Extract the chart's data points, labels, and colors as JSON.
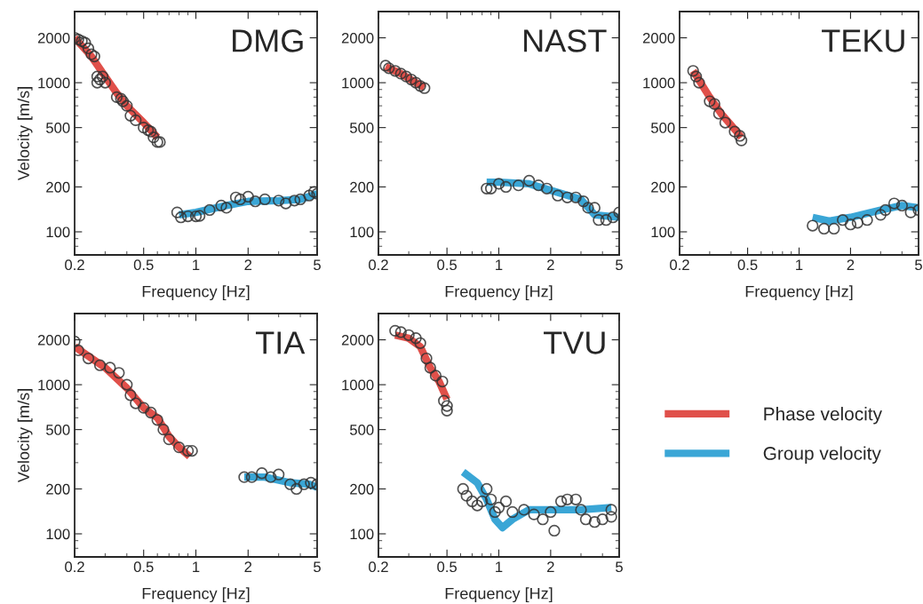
{
  "chart_data": [
    {
      "type": "line",
      "title": "DMG",
      "xlabel": "Frequency [Hz]",
      "ylabel": "Velocity [m/s]",
      "log": "xy",
      "xlim": [
        0.2,
        5
      ],
      "ylim": [
        70,
        3000
      ],
      "xticks": [
        0.2,
        0.5,
        1,
        2,
        5
      ],
      "yticks": [
        100,
        200,
        500,
        1000,
        2000
      ],
      "legend": false,
      "series": [
        {
          "type": "line",
          "color": "#e0504a",
          "marker": "none",
          "x": [
            0.2,
            0.25,
            0.3,
            0.35,
            0.4,
            0.5,
            0.6
          ],
          "values": [
            2000,
            1500,
            1100,
            850,
            700,
            540,
            430
          ]
        },
        {
          "type": "line",
          "color": "#3aa6d6",
          "marker": "none",
          "x": [
            0.8,
            1,
            1.5,
            2,
            3,
            4,
            5
          ],
          "values": [
            130,
            135,
            150,
            160,
            162,
            165,
            180
          ]
        },
        {
          "type": "scatter",
          "color": "#333333",
          "marker": "circle",
          "x": [
            0.2,
            0.21,
            0.22,
            0.23,
            0.24,
            0.25,
            0.26,
            0.27,
            0.27,
            0.28,
            0.29,
            0.3,
            0.35,
            0.37,
            0.38,
            0.4,
            0.42,
            0.45,
            0.5,
            0.53,
            0.55,
            0.57,
            0.6,
            0.62
          ],
          "values": [
            2000,
            1950,
            1900,
            1850,
            1700,
            1550,
            1500,
            1100,
            1000,
            1050,
            1100,
            1000,
            800,
            780,
            750,
            700,
            600,
            560,
            500,
            480,
            470,
            430,
            400,
            400
          ]
        },
        {
          "type": "scatter",
          "color": "#333333",
          "marker": "circle",
          "x": [
            0.78,
            0.82,
            0.9,
            1,
            1.05,
            1.2,
            1.4,
            1.5,
            1.7,
            1.8,
            2,
            2.2,
            2.5,
            3,
            3.3,
            3.7,
            4,
            4.5,
            4.8,
            5
          ],
          "values": [
            135,
            125,
            127,
            127,
            128,
            140,
            150,
            145,
            170,
            165,
            172,
            160,
            165,
            162,
            155,
            162,
            165,
            175,
            185,
            180
          ]
        }
      ]
    },
    {
      "type": "line",
      "title": "NAST",
      "xlabel": "Frequency [Hz]",
      "log": "xy",
      "xlim": [
        0.2,
        5
      ],
      "ylim": [
        70,
        3000
      ],
      "xticks": [
        0.2,
        0.5,
        1,
        2,
        5
      ],
      "yticks": [
        100,
        200,
        500,
        1000,
        2000
      ],
      "legend": false,
      "series": [
        {
          "type": "line",
          "color": "#e0504a",
          "marker": "none",
          "x": [
            0.22,
            0.27,
            0.33,
            0.37
          ],
          "values": [
            1280,
            1150,
            1000,
            930
          ]
        },
        {
          "type": "line",
          "color": "#3aa6d6",
          "marker": "none",
          "x": [
            0.85,
            1,
            1.5,
            2,
            3,
            3.6,
            5
          ],
          "values": [
            215,
            215,
            210,
            190,
            165,
            130,
            125
          ]
        },
        {
          "type": "scatter",
          "color": "#333333",
          "marker": "circle",
          "x": [
            0.22,
            0.23,
            0.25,
            0.27,
            0.29,
            0.31,
            0.33,
            0.35,
            0.37
          ],
          "values": [
            1300,
            1250,
            1200,
            1150,
            1100,
            1050,
            1000,
            950,
            920
          ]
        },
        {
          "type": "scatter",
          "color": "#333333",
          "marker": "circle",
          "x": [
            0.85,
            0.9,
            1,
            1.1,
            1.3,
            1.5,
            1.7,
            1.9,
            2.2,
            2.5,
            2.8,
            3.1,
            3.3,
            3.6,
            3.8,
            4.2,
            4.6,
            5
          ],
          "values": [
            195,
            195,
            210,
            200,
            205,
            220,
            205,
            195,
            175,
            170,
            170,
            160,
            145,
            145,
            120,
            120,
            125,
            135
          ]
        }
      ]
    },
    {
      "type": "line",
      "title": "TEKU",
      "xlabel": "Frequency [Hz]",
      "log": "xy",
      "xlim": [
        0.2,
        5
      ],
      "ylim": [
        70,
        3000
      ],
      "xticks": [
        0.2,
        0.5,
        1,
        2,
        5
      ],
      "yticks": [
        100,
        200,
        500,
        1000,
        2000
      ],
      "legend": false,
      "series": [
        {
          "type": "line",
          "color": "#e0504a",
          "marker": "none",
          "x": [
            0.24,
            0.3,
            0.35,
            0.4,
            0.46
          ],
          "values": [
            1200,
            800,
            620,
            520,
            430
          ]
        },
        {
          "type": "line",
          "color": "#3aa6d6",
          "marker": "none",
          "x": [
            1.2,
            1.5,
            2,
            3,
            4,
            5
          ],
          "values": [
            125,
            118,
            125,
            140,
            150,
            145
          ]
        },
        {
          "type": "scatter",
          "color": "#333333",
          "marker": "circle",
          "x": [
            0.24,
            0.25,
            0.26,
            0.3,
            0.32,
            0.34,
            0.37,
            0.42,
            0.45,
            0.46
          ],
          "values": [
            1200,
            1100,
            1000,
            750,
            720,
            620,
            540,
            470,
            440,
            410
          ]
        },
        {
          "type": "scatter",
          "color": "#333333",
          "marker": "circle",
          "x": [
            1.2,
            1.4,
            1.6,
            1.8,
            2,
            2.2,
            2.5,
            3,
            3.2,
            3.6,
            4,
            4.5,
            5
          ],
          "values": [
            110,
            105,
            105,
            120,
            112,
            115,
            120,
            130,
            140,
            155,
            150,
            135,
            140
          ]
        }
      ]
    },
    {
      "type": "line",
      "title": "TIA",
      "xlabel": "Frequency [Hz]",
      "ylabel": "Velocity [m/s]",
      "log": "xy",
      "xlim": [
        0.2,
        5
      ],
      "ylim": [
        70,
        3000
      ],
      "xticks": [
        0.2,
        0.5,
        1,
        2,
        5
      ],
      "yticks": [
        100,
        200,
        500,
        1000,
        2000
      ],
      "legend": false,
      "series": [
        {
          "type": "line",
          "color": "#e0504a",
          "marker": "none",
          "x": [
            0.2,
            0.3,
            0.4,
            0.5,
            0.6,
            0.7,
            0.8,
            0.92
          ],
          "values": [
            1800,
            1300,
            950,
            700,
            600,
            450,
            380,
            330
          ]
        },
        {
          "type": "line",
          "color": "#3aa6d6",
          "marker": "none",
          "x": [
            1.9,
            2.5,
            3.5,
            4.5,
            5
          ],
          "values": [
            240,
            240,
            220,
            215,
            205
          ]
        },
        {
          "type": "scatter",
          "color": "#333333",
          "marker": "circle",
          "x": [
            0.2,
            0.21,
            0.24,
            0.28,
            0.32,
            0.36,
            0.4,
            0.42,
            0.45,
            0.5,
            0.55,
            0.6,
            0.65,
            0.7,
            0.8,
            0.9,
            0.95
          ],
          "values": [
            1950,
            1700,
            1500,
            1350,
            1300,
            1200,
            1000,
            850,
            750,
            700,
            650,
            580,
            500,
            430,
            380,
            360,
            360
          ]
        },
        {
          "type": "scatter",
          "color": "#333333",
          "marker": "circle",
          "x": [
            1.9,
            2.1,
            2.4,
            2.7,
            3,
            3.5,
            3.8,
            4.2,
            4.6,
            5
          ],
          "values": [
            240,
            240,
            255,
            240,
            250,
            215,
            200,
            215,
            220,
            215
          ]
        }
      ]
    },
    {
      "type": "line",
      "title": "TVU",
      "xlabel": "Frequency [Hz]",
      "log": "xy",
      "xlim": [
        0.2,
        5
      ],
      "ylim": [
        70,
        3000
      ],
      "xticks": [
        0.2,
        0.5,
        1,
        2,
        5
      ],
      "yticks": [
        100,
        200,
        500,
        1000,
        2000
      ],
      "legend": "right",
      "series": [
        {
          "type": "line",
          "name": "Phase velocity",
          "color": "#e0504a",
          "marker": "none",
          "x": [
            0.25,
            0.3,
            0.35,
            0.4,
            0.45,
            0.5
          ],
          "values": [
            2150,
            2050,
            1800,
            1300,
            1050,
            800
          ]
        },
        {
          "type": "line",
          "name": "Group velocity",
          "color": "#3aa6d6",
          "marker": "none",
          "x": [
            0.62,
            0.75,
            0.85,
            0.95,
            1.05,
            1.2,
            1.5,
            2,
            3,
            4.5
          ],
          "values": [
            260,
            220,
            170,
            125,
            110,
            125,
            145,
            145,
            145,
            150
          ]
        },
        {
          "type": "scatter",
          "color": "#333333",
          "marker": "circle",
          "x": [
            0.25,
            0.27,
            0.3,
            0.33,
            0.35,
            0.38,
            0.4,
            0.43,
            0.47,
            0.48,
            0.5,
            0.5
          ],
          "values": [
            2300,
            2250,
            2150,
            2050,
            1900,
            1500,
            1300,
            1150,
            1050,
            780,
            720,
            670
          ]
        },
        {
          "type": "scatter",
          "color": "#333333",
          "marker": "circle",
          "x": [
            0.62,
            0.65,
            0.7,
            0.75,
            0.8,
            0.85,
            0.9,
            0.95,
            1,
            1.1,
            1.2,
            1.4,
            1.6,
            1.8,
            2,
            2.1,
            2.3,
            2.5,
            2.8,
            3,
            3.2,
            3.6,
            4,
            4.5,
            4.5
          ],
          "values": [
            200,
            180,
            165,
            155,
            165,
            200,
            170,
            140,
            150,
            165,
            140,
            145,
            135,
            125,
            140,
            105,
            165,
            170,
            170,
            145,
            125,
            120,
            125,
            130,
            145
          ]
        }
      ]
    }
  ]
}
